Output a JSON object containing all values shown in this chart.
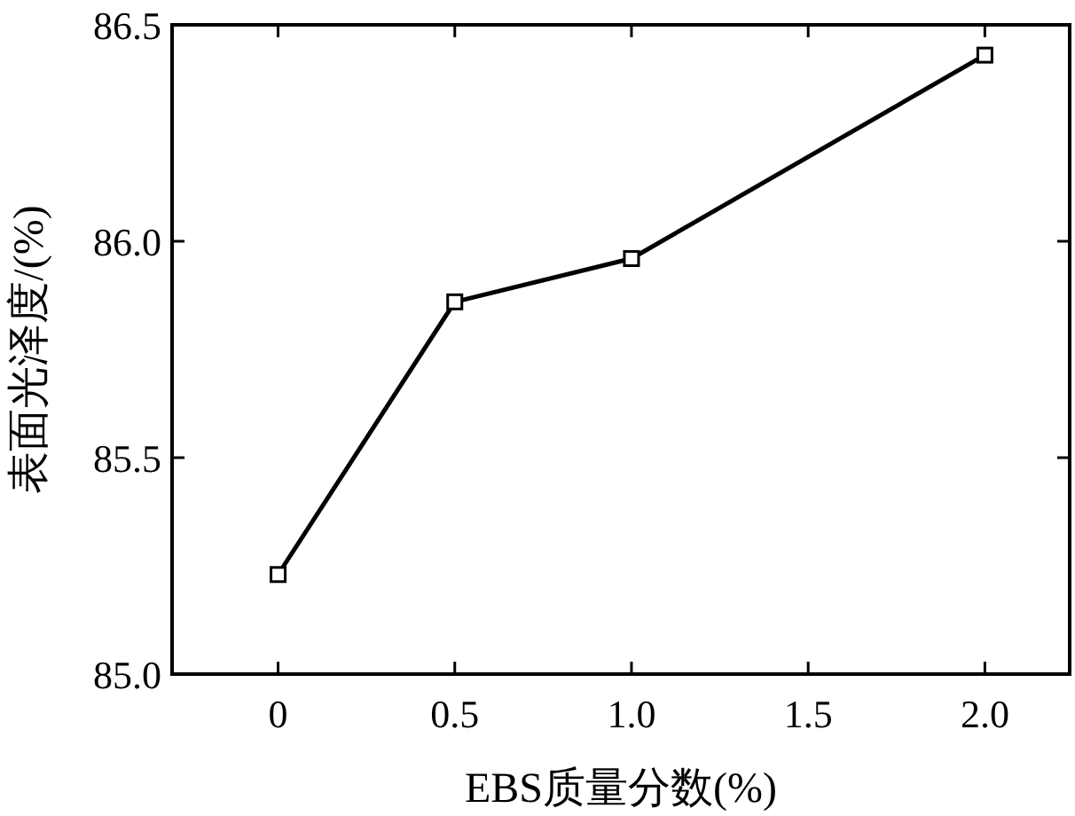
{
  "chart_data": {
    "type": "line",
    "xlabel": "EBS质量分数(%)",
    "ylabel": "表面光泽度/(%)",
    "x": [
      0,
      0.5,
      1.0,
      2.0
    ],
    "series": [
      {
        "color": "#000000",
        "values": [
          85.23,
          85.86,
          85.96,
          86.43
        ]
      }
    ],
    "xlim": [
      -0.3,
      2.24
    ],
    "xticks": [
      0,
      {
        "value": 0.5,
        "label": "0.5"
      },
      {
        "value": 1,
        "label": "1.0"
      },
      {
        "value": 1.5,
        "label": "1.5"
      },
      {
        "value": 2,
        "label": "2.0"
      }
    ],
    "ylim": [
      85.0,
      86.5
    ],
    "yticks": [
      {
        "value": 85,
        "label": "85.0"
      },
      {
        "value": 85.5,
        "label": "85.5"
      },
      {
        "value": 86,
        "label": "86.0"
      },
      {
        "value": 86.5,
        "label": "86.5"
      }
    ],
    "grid": false,
    "marker": "square",
    "line_style": "solid"
  }
}
